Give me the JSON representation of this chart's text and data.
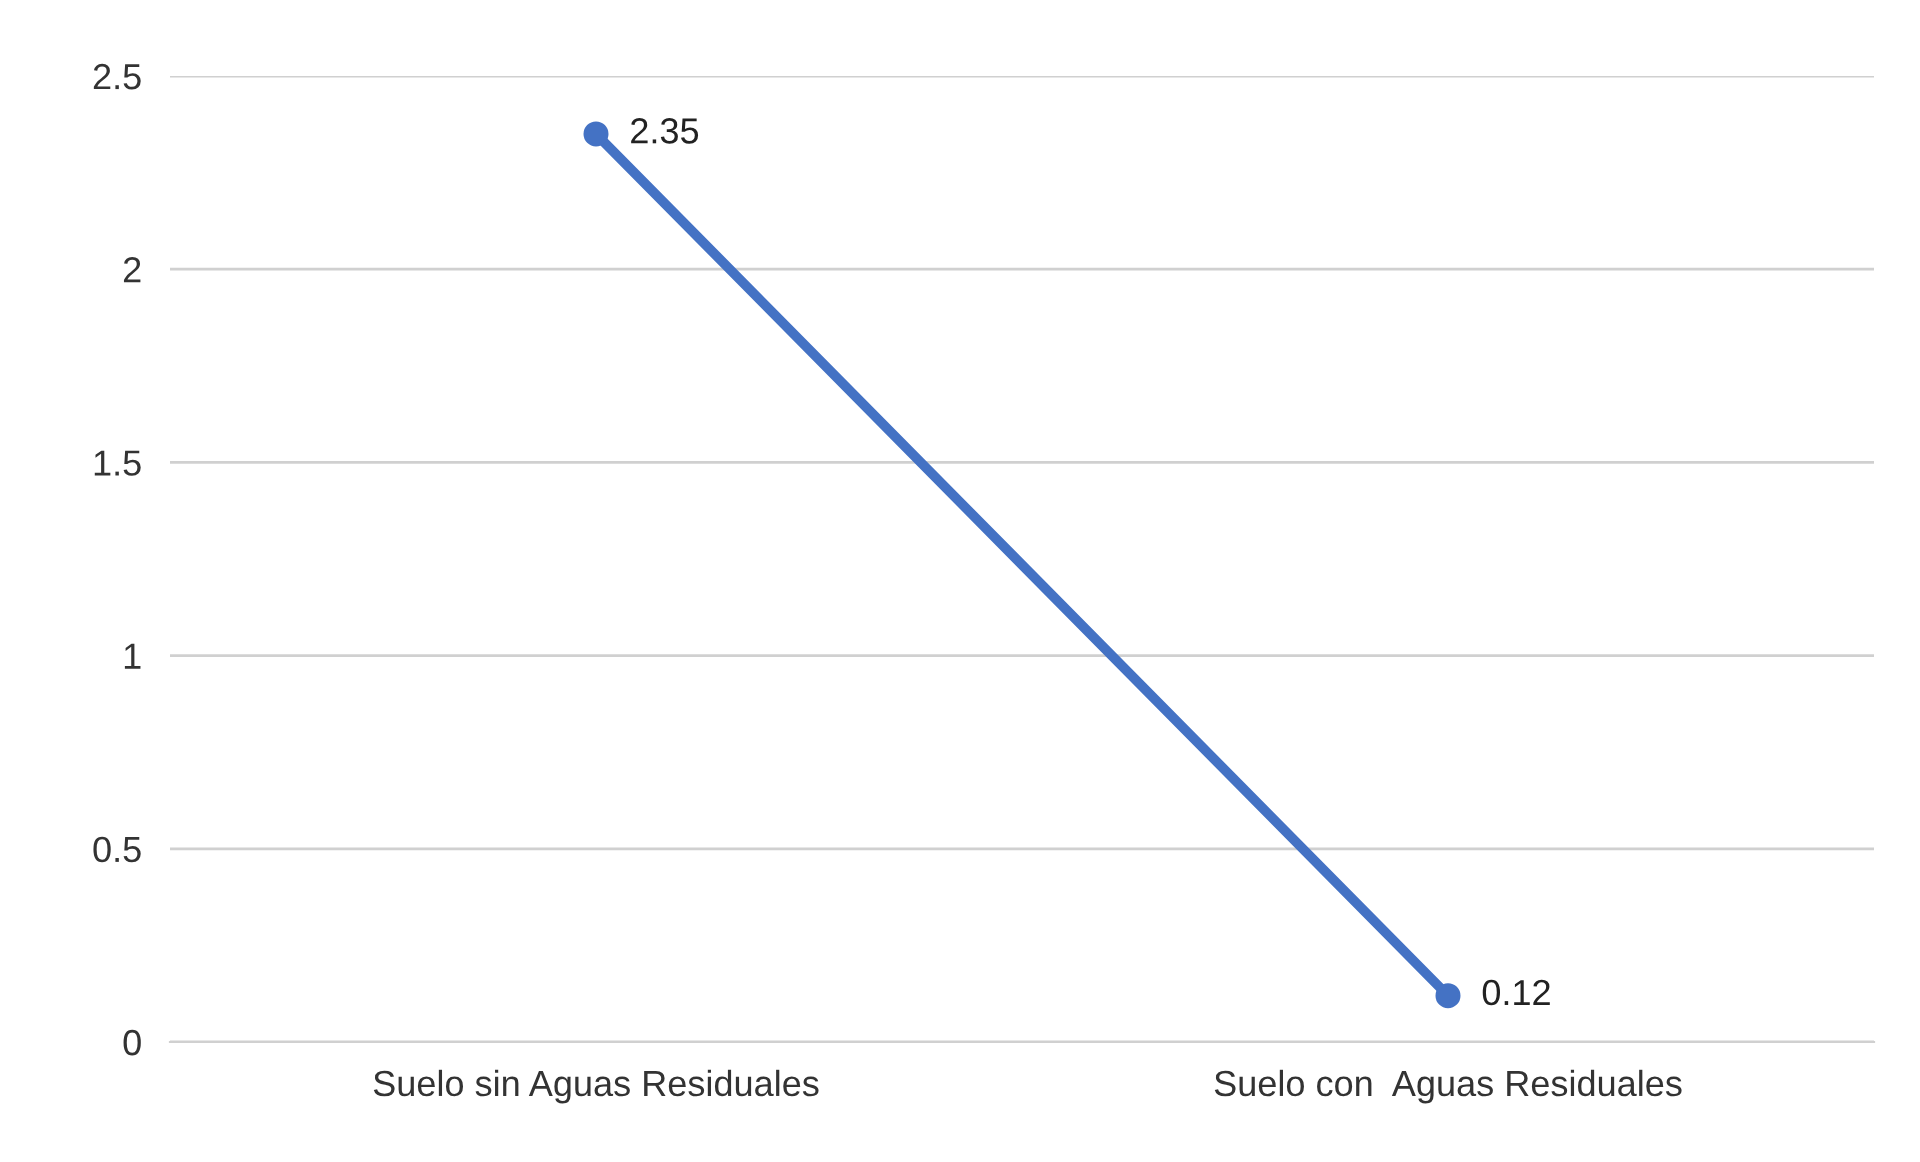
{
  "chart_data": {
    "type": "line",
    "categories": [
      "Suelo sin Aguas Residuales",
      "Suelo con  Aguas Residuales"
    ],
    "series": [
      {
        "color": "#4472c4",
        "values": [
          2.35,
          0.12
        ]
      }
    ],
    "ylim": [
      0,
      2.5
    ],
    "yticks": [
      0,
      0.5,
      1,
      1.5,
      2,
      2.5
    ],
    "grid": "y",
    "marker": "circle",
    "line_style": "solid",
    "data_labels": true,
    "legend": false
  }
}
